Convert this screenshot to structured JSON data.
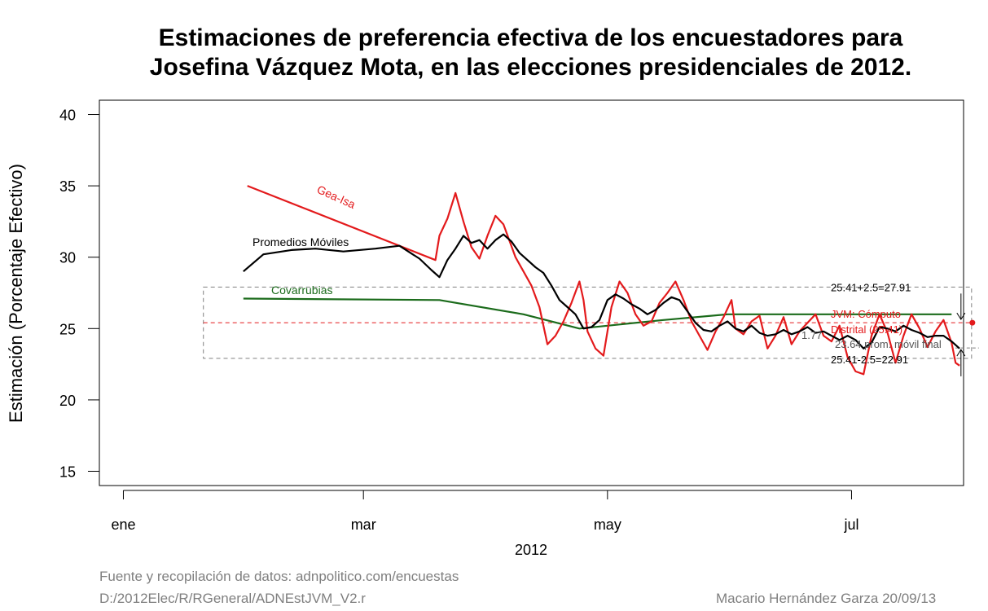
{
  "chart_data": {
    "type": "line",
    "title_lines": [
      "Estimaciones de preferencia efectiva de los encuestadores para",
      "Josefina Vázquez Mota, en las elecciones presidenciales de 2012."
    ],
    "xlabel": "2012",
    "ylabel": "Estimación (Porcentaje Efectivo)",
    "ylim": [
      14,
      41
    ],
    "yticks": [
      15,
      20,
      25,
      30,
      35,
      40
    ],
    "xlim": [
      "2011-12-26",
      "2012-07-29"
    ],
    "xticks": [
      {
        "date": "2012-01-01",
        "label": "ene"
      },
      {
        "date": "2012-03-01",
        "label": "mar"
      },
      {
        "date": "2012-05-01",
        "label": "may"
      },
      {
        "date": "2012-07-01",
        "label": "jul"
      }
    ],
    "series": [
      {
        "name": "Gea-Isa",
        "color": "#e31a1c",
        "points": [
          [
            "2012-02-01",
            35.0
          ],
          [
            "2012-03-19",
            29.8
          ],
          [
            "2012-03-20",
            31.5
          ],
          [
            "2012-03-22",
            32.7
          ],
          [
            "2012-03-24",
            34.5
          ],
          [
            "2012-03-26",
            32.5
          ],
          [
            "2012-03-28",
            30.7
          ],
          [
            "2012-03-30",
            29.9
          ],
          [
            "2012-04-01",
            31.5
          ],
          [
            "2012-04-03",
            32.9
          ],
          [
            "2012-04-05",
            32.3
          ],
          [
            "2012-04-08",
            30.0
          ],
          [
            "2012-04-10",
            29.0
          ],
          [
            "2012-04-12",
            28.0
          ],
          [
            "2012-04-14",
            26.5
          ],
          [
            "2012-04-16",
            23.9
          ],
          [
            "2012-04-18",
            24.5
          ],
          [
            "2012-04-20",
            25.5
          ],
          [
            "2012-04-22",
            26.8
          ],
          [
            "2012-04-24",
            28.3
          ],
          [
            "2012-04-25",
            27.0
          ],
          [
            "2012-04-26",
            24.8
          ],
          [
            "2012-04-28",
            23.6
          ],
          [
            "2012-04-30",
            23.1
          ],
          [
            "2012-05-02",
            26.5
          ],
          [
            "2012-05-04",
            28.3
          ],
          [
            "2012-05-06",
            27.5
          ],
          [
            "2012-05-08",
            26.0
          ],
          [
            "2012-05-10",
            25.2
          ],
          [
            "2012-05-12",
            25.5
          ],
          [
            "2012-05-14",
            26.8
          ],
          [
            "2012-05-16",
            27.5
          ],
          [
            "2012-05-18",
            28.3
          ],
          [
            "2012-05-20",
            27.0
          ],
          [
            "2012-05-22",
            25.5
          ],
          [
            "2012-05-24",
            24.5
          ],
          [
            "2012-05-26",
            23.5
          ],
          [
            "2012-05-28",
            24.8
          ],
          [
            "2012-05-30",
            25.8
          ],
          [
            "2012-06-01",
            27.0
          ],
          [
            "2012-06-02",
            25.0
          ],
          [
            "2012-06-04",
            24.6
          ],
          [
            "2012-06-06",
            25.5
          ],
          [
            "2012-06-08",
            25.9
          ],
          [
            "2012-06-10",
            23.6
          ],
          [
            "2012-06-12",
            24.5
          ],
          [
            "2012-06-14",
            25.8
          ],
          [
            "2012-06-16",
            23.9
          ],
          [
            "2012-06-18",
            24.8
          ],
          [
            "2012-06-20",
            25.4
          ],
          [
            "2012-06-22",
            26.0
          ],
          [
            "2012-06-24",
            24.5
          ],
          [
            "2012-06-26",
            24.1
          ],
          [
            "2012-06-28",
            25.2
          ],
          [
            "2012-06-30",
            23.0
          ],
          [
            "2012-07-02",
            22.0
          ],
          [
            "2012-07-04",
            21.8
          ],
          [
            "2012-07-06",
            24.5
          ],
          [
            "2012-07-08",
            26.0
          ],
          [
            "2012-07-10",
            24.7
          ],
          [
            "2012-07-12",
            22.6
          ],
          [
            "2012-07-14",
            24.5
          ],
          [
            "2012-07-16",
            26.0
          ],
          [
            "2012-07-18",
            25.0
          ],
          [
            "2012-07-20",
            23.7
          ],
          [
            "2012-07-22",
            24.8
          ],
          [
            "2012-07-24",
            25.6
          ],
          [
            "2012-07-26",
            24.0
          ],
          [
            "2012-07-27",
            22.6
          ],
          [
            "2012-07-28",
            22.4
          ]
        ]
      },
      {
        "name": "Promedios Móviles",
        "color": "#000000",
        "points": [
          [
            "2012-01-31",
            29.0
          ],
          [
            "2012-02-05",
            30.2
          ],
          [
            "2012-02-12",
            30.5
          ],
          [
            "2012-02-18",
            30.6
          ],
          [
            "2012-02-25",
            30.4
          ],
          [
            "2012-03-04",
            30.6
          ],
          [
            "2012-03-10",
            30.8
          ],
          [
            "2012-03-15",
            29.9
          ],
          [
            "2012-03-18",
            29.1
          ],
          [
            "2012-03-20",
            28.6
          ],
          [
            "2012-03-22",
            29.8
          ],
          [
            "2012-03-24",
            30.6
          ],
          [
            "2012-03-26",
            31.5
          ],
          [
            "2012-03-28",
            31.0
          ],
          [
            "2012-03-30",
            31.2
          ],
          [
            "2012-04-01",
            30.6
          ],
          [
            "2012-04-03",
            31.2
          ],
          [
            "2012-04-05",
            31.6
          ],
          [
            "2012-04-07",
            31.1
          ],
          [
            "2012-04-09",
            30.3
          ],
          [
            "2012-04-11",
            29.8
          ],
          [
            "2012-04-13",
            29.3
          ],
          [
            "2012-04-15",
            28.9
          ],
          [
            "2012-04-17",
            28.0
          ],
          [
            "2012-04-19",
            27.0
          ],
          [
            "2012-04-21",
            26.5
          ],
          [
            "2012-04-23",
            26.0
          ],
          [
            "2012-04-25",
            25.0
          ],
          [
            "2012-04-27",
            25.1
          ],
          [
            "2012-04-29",
            25.6
          ],
          [
            "2012-05-01",
            27.0
          ],
          [
            "2012-05-03",
            27.4
          ],
          [
            "2012-05-05",
            27.1
          ],
          [
            "2012-05-07",
            26.7
          ],
          [
            "2012-05-09",
            26.4
          ],
          [
            "2012-05-11",
            26.0
          ],
          [
            "2012-05-13",
            26.3
          ],
          [
            "2012-05-15",
            26.8
          ],
          [
            "2012-05-17",
            27.2
          ],
          [
            "2012-05-19",
            27.0
          ],
          [
            "2012-05-21",
            26.2
          ],
          [
            "2012-05-23",
            25.4
          ],
          [
            "2012-05-25",
            24.9
          ],
          [
            "2012-05-27",
            24.8
          ],
          [
            "2012-05-29",
            25.2
          ],
          [
            "2012-05-31",
            25.5
          ],
          [
            "2012-06-02",
            25.0
          ],
          [
            "2012-06-04",
            24.8
          ],
          [
            "2012-06-06",
            25.2
          ],
          [
            "2012-06-08",
            24.7
          ],
          [
            "2012-06-10",
            24.5
          ],
          [
            "2012-06-12",
            24.6
          ],
          [
            "2012-06-14",
            24.9
          ],
          [
            "2012-06-16",
            24.6
          ],
          [
            "2012-06-18",
            24.8
          ],
          [
            "2012-06-20",
            25.1
          ],
          [
            "2012-06-22",
            24.7
          ],
          [
            "2012-06-24",
            24.8
          ],
          [
            "2012-06-26",
            24.5
          ],
          [
            "2012-06-28",
            24.2
          ],
          [
            "2012-06-30",
            24.5
          ],
          [
            "2012-07-02",
            24.2
          ],
          [
            "2012-07-04",
            23.6
          ],
          [
            "2012-07-06",
            24.0
          ],
          [
            "2012-07-08",
            25.1
          ],
          [
            "2012-07-10",
            25.0
          ],
          [
            "2012-07-12",
            24.8
          ],
          [
            "2012-07-14",
            25.2
          ],
          [
            "2012-07-16",
            24.9
          ],
          [
            "2012-07-18",
            24.7
          ],
          [
            "2012-07-20",
            24.4
          ],
          [
            "2012-07-22",
            24.5
          ],
          [
            "2012-07-24",
            24.5
          ],
          [
            "2012-07-26",
            24.1
          ],
          [
            "2012-07-28",
            23.6
          ]
        ]
      },
      {
        "name": "Covarrubias",
        "color": "#1b6b1b",
        "points": [
          [
            "2012-01-31",
            27.1
          ],
          [
            "2012-03-20",
            27.0
          ],
          [
            "2012-04-10",
            26.0
          ],
          [
            "2012-04-24",
            25.0
          ],
          [
            "2012-05-15",
            25.6
          ],
          [
            "2012-05-31",
            26.0
          ],
          [
            "2012-07-10",
            26.0
          ],
          [
            "2012-07-26",
            26.0
          ]
        ]
      }
    ],
    "reference": {
      "result_value": 25.41,
      "result_date": "2012-07-31",
      "result_label_lines": [
        "JVM: Cómputo",
        "Distrital (25.41)"
      ],
      "band_upper": 27.91,
      "band_lower": 22.91,
      "band_start": "2012-01-21",
      "band_end": "2012-07-31",
      "upper_label": "25.41+2.5=27.91",
      "lower_label": "25.41-2.5=22.91",
      "final_avg_value": 23.64,
      "final_avg_label": "23.64 prom. móvil final",
      "difference_label": "1.77"
    }
  },
  "footer": {
    "source": "Fuente y recopilación de datos: adnpolitico.com/encuestas",
    "path": "D:/2012Elec/R/RGeneral/ADNEstJVM_V2.r",
    "author": "Macario Hernández Garza  20/09/13"
  },
  "colors": {
    "red": "#e31a1c",
    "green": "#1b6b1b",
    "black": "#000000",
    "gray": "#7f7f7f"
  }
}
